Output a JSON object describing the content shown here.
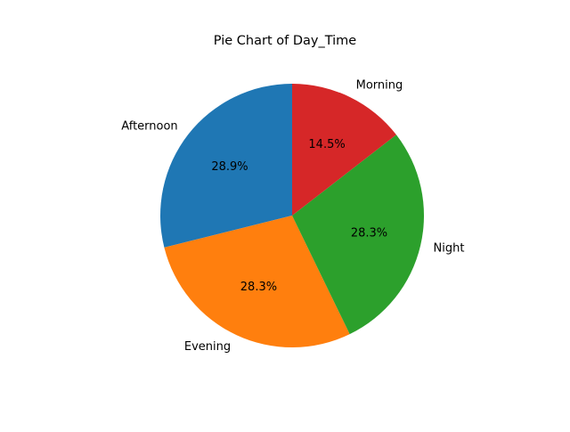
{
  "chart_data": {
    "type": "pie",
    "title": "Pie Chart of Day_Time",
    "categories": [
      "Afternoon",
      "Evening",
      "Night",
      "Morning"
    ],
    "values": [
      28.9,
      28.3,
      28.3,
      14.5
    ],
    "value_labels": [
      "28.9%",
      "28.3%",
      "28.3%",
      "14.5%"
    ],
    "colors": [
      "#1f77b4",
      "#ff7f0e",
      "#2ca02c",
      "#d62728"
    ],
    "start_angle_deg": 90,
    "direction": "counterclockwise",
    "legend": "none"
  }
}
